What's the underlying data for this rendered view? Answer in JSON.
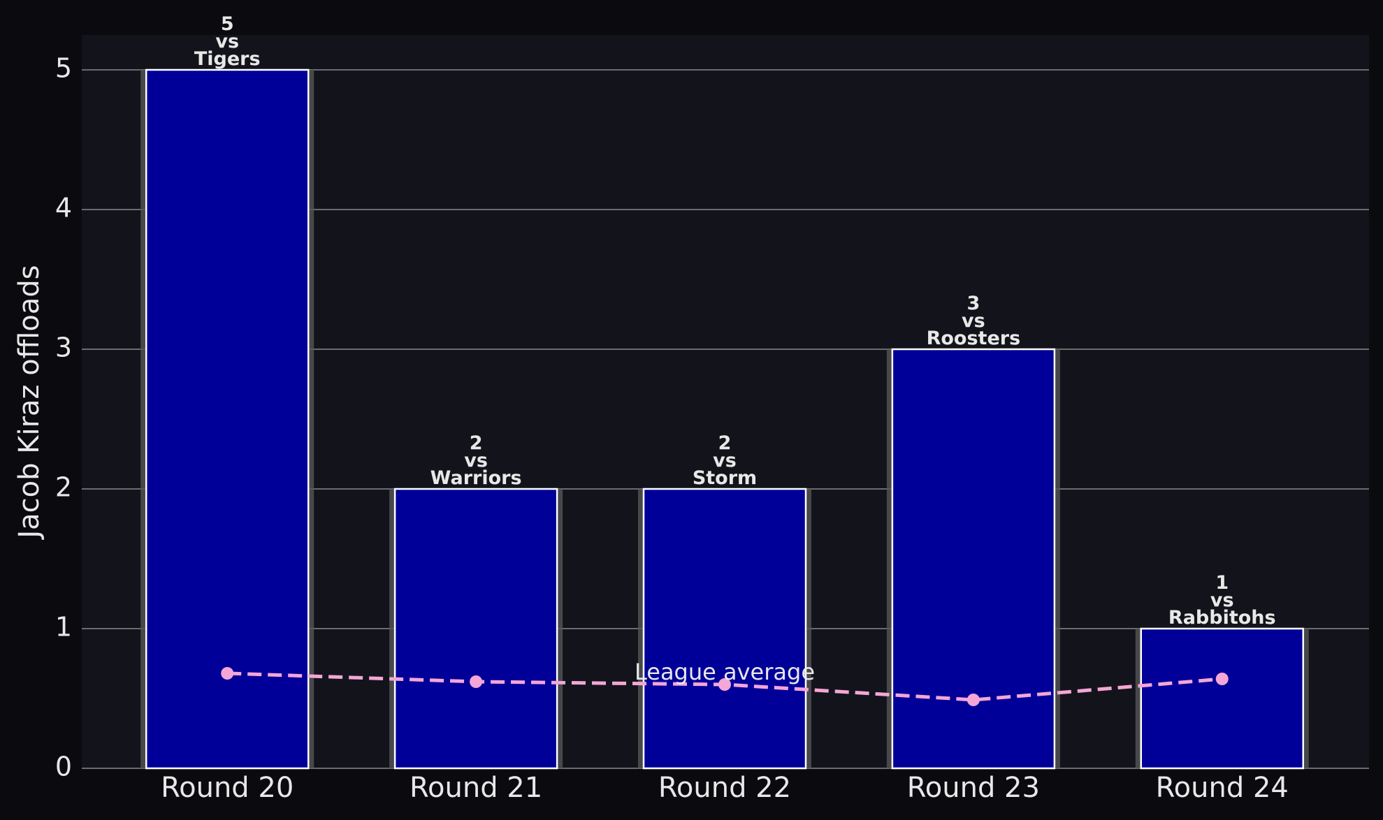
{
  "chart_data": {
    "type": "bar",
    "y_label": "Jacob Kiraz offloads",
    "categories": [
      "Round 20",
      "Round 21",
      "Round 22",
      "Round 23",
      "Round 24"
    ],
    "values": [
      5,
      2,
      2,
      3,
      1
    ],
    "value_labels": [
      "5\nvs\nTigers",
      "2\nvs\nWarriors",
      "2\nvs\nStorm",
      "3\nvs\nRoosters",
      "1\nvs\nRabbitohs"
    ],
    "color": "#000099",
    "average": {
      "name": "League average",
      "color": "#f4a6d6",
      "values": [
        0.68,
        0.62,
        0.6,
        0.49,
        0.64
      ]
    },
    "ylim": [
      0,
      5.25
    ],
    "yticks": [
      0,
      1,
      2,
      3,
      4,
      5
    ],
    "grid": true
  }
}
